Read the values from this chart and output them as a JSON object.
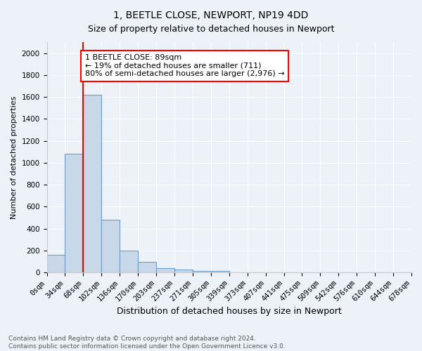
{
  "title": "1, BEETLE CLOSE, NEWPORT, NP19 4DD",
  "subtitle": "Size of property relative to detached houses in Newport",
  "xlabel": "Distribution of detached houses by size in Newport",
  "ylabel": "Number of detached properties",
  "bin_labels": [
    "0sqm",
    "34sqm",
    "68sqm",
    "102sqm",
    "136sqm",
    "170sqm",
    "203sqm",
    "237sqm",
    "271sqm",
    "305sqm",
    "339sqm",
    "373sqm",
    "407sqm",
    "441sqm",
    "475sqm",
    "509sqm",
    "542sqm",
    "576sqm",
    "610sqm",
    "644sqm",
    "678sqm"
  ],
  "bar_heights": [
    160,
    1080,
    1620,
    480,
    200,
    100,
    40,
    25,
    15,
    15,
    0,
    0,
    0,
    0,
    0,
    0,
    0,
    0,
    0,
    0
  ],
  "bar_color": "#c8d8e8",
  "bar_edge_color": "#6b9ec8",
  "vline_x": 2,
  "vline_color": "red",
  "annotation_text": "1 BEETLE CLOSE: 89sqm\n← 19% of detached houses are smaller (711)\n80% of semi-detached houses are larger (2,976) →",
  "annotation_box_color": "white",
  "annotation_box_edge": "red",
  "ylim": [
    0,
    2100
  ],
  "yticks": [
    0,
    200,
    400,
    600,
    800,
    1000,
    1200,
    1400,
    1600,
    1800,
    2000
  ],
  "footer_text": "Contains HM Land Registry data © Crown copyright and database right 2024.\nContains public sector information licensed under the Open Government Licence v3.0.",
  "bg_color": "#edf2f8",
  "plot_bg_color": "#edf2f8",
  "title_fontsize": 10,
  "subtitle_fontsize": 9,
  "xlabel_fontsize": 9,
  "ylabel_fontsize": 8,
  "tick_fontsize": 7.5,
  "annotation_fontsize": 8,
  "footer_fontsize": 6.5
}
